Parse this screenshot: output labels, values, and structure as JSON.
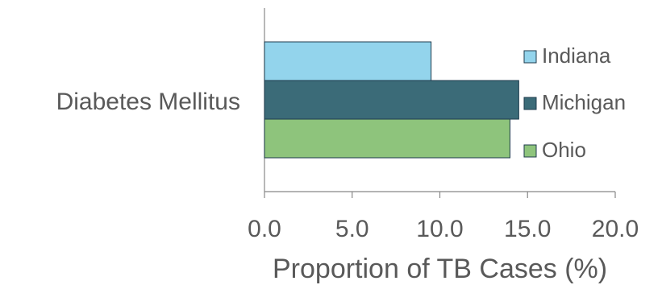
{
  "chart_data": {
    "type": "bar",
    "orientation": "horizontal",
    "categories": [
      "Diabetes Mellitus"
    ],
    "series": [
      {
        "name": "Indiana",
        "values": [
          9.5
        ],
        "color": "#93d4ec"
      },
      {
        "name": "Michigan",
        "values": [
          14.5
        ],
        "color": "#3b6b78"
      },
      {
        "name": "Ohio",
        "values": [
          14.0
        ],
        "color": "#8ec47c"
      }
    ],
    "xlabel": "Proportion of TB Cases (%)",
    "xlim": [
      0,
      20
    ],
    "xticks": [
      "0.0",
      "5.0",
      "10.0",
      "15.0",
      "20.0"
    ],
    "grid": false,
    "legend_placement": "right"
  }
}
